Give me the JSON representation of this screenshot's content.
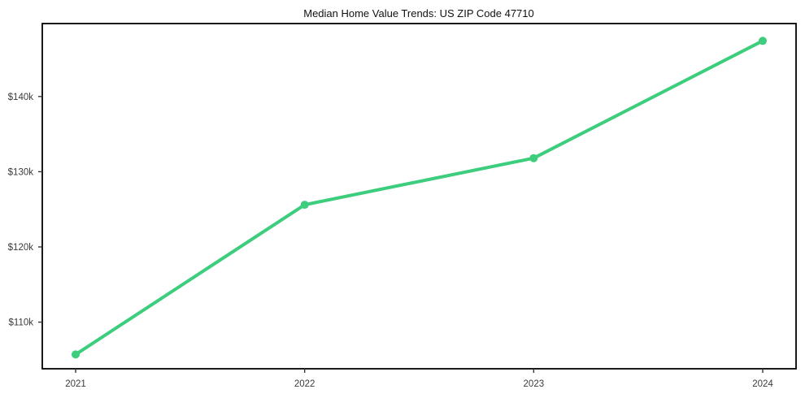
{
  "chart_data": {
    "type": "line",
    "title": "Median Home Value Trends: US ZIP Code 47710",
    "categories": [
      "2021",
      "2022",
      "2023",
      "2024"
    ],
    "series": [
      {
        "name": "Median Home Value",
        "values": [
          105700,
          125600,
          131800,
          147400
        ]
      }
    ],
    "y_ticks": [
      {
        "value": 110000,
        "label": "$110k"
      },
      {
        "value": 120000,
        "label": "$120k"
      },
      {
        "value": 130000,
        "label": "$130k"
      },
      {
        "value": 140000,
        "label": "$140k"
      }
    ],
    "ylim": [
      103800,
      149700
    ],
    "xlabel": "",
    "ylabel": "",
    "grid": false,
    "legend": "none",
    "line_color": "#3ccd7d",
    "marker": "circle",
    "marker_radius": 5,
    "background_color": "#ffffff",
    "frame_color": "#000000",
    "tick_label_color": "#3a3a3a",
    "title_color": "#111111"
  }
}
